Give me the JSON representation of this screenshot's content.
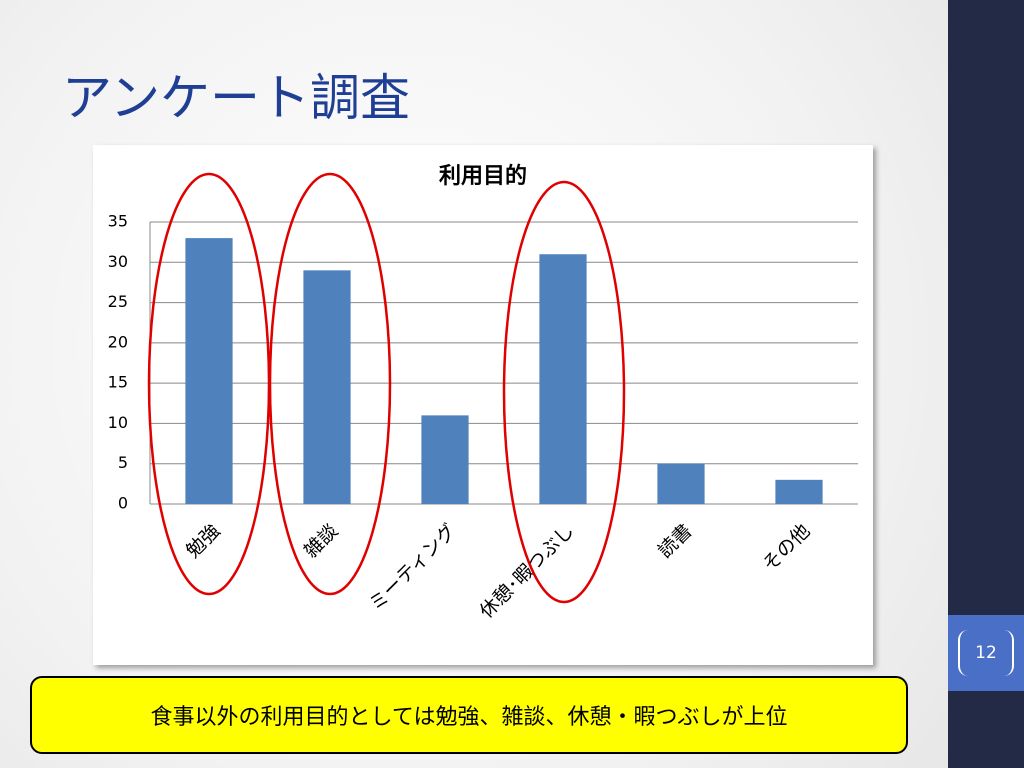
{
  "slide_title": "アンケート調査",
  "page_number": "12",
  "callout": "食事以外の利用目的としては勉強、雑談、休憩・暇つぶしが上位",
  "chart_data": {
    "type": "bar",
    "title": "利用目的",
    "categories": [
      "勉強",
      "雑談",
      "ミーティング",
      "休憩･暇つぶし",
      "読書",
      "その他"
    ],
    "values": [
      33,
      29,
      11,
      31,
      5,
      3
    ],
    "color": "#4f81bd",
    "ylim": [
      0,
      35
    ],
    "yticks": [
      0,
      5,
      10,
      15,
      20,
      25,
      30,
      35
    ],
    "grid": true
  }
}
